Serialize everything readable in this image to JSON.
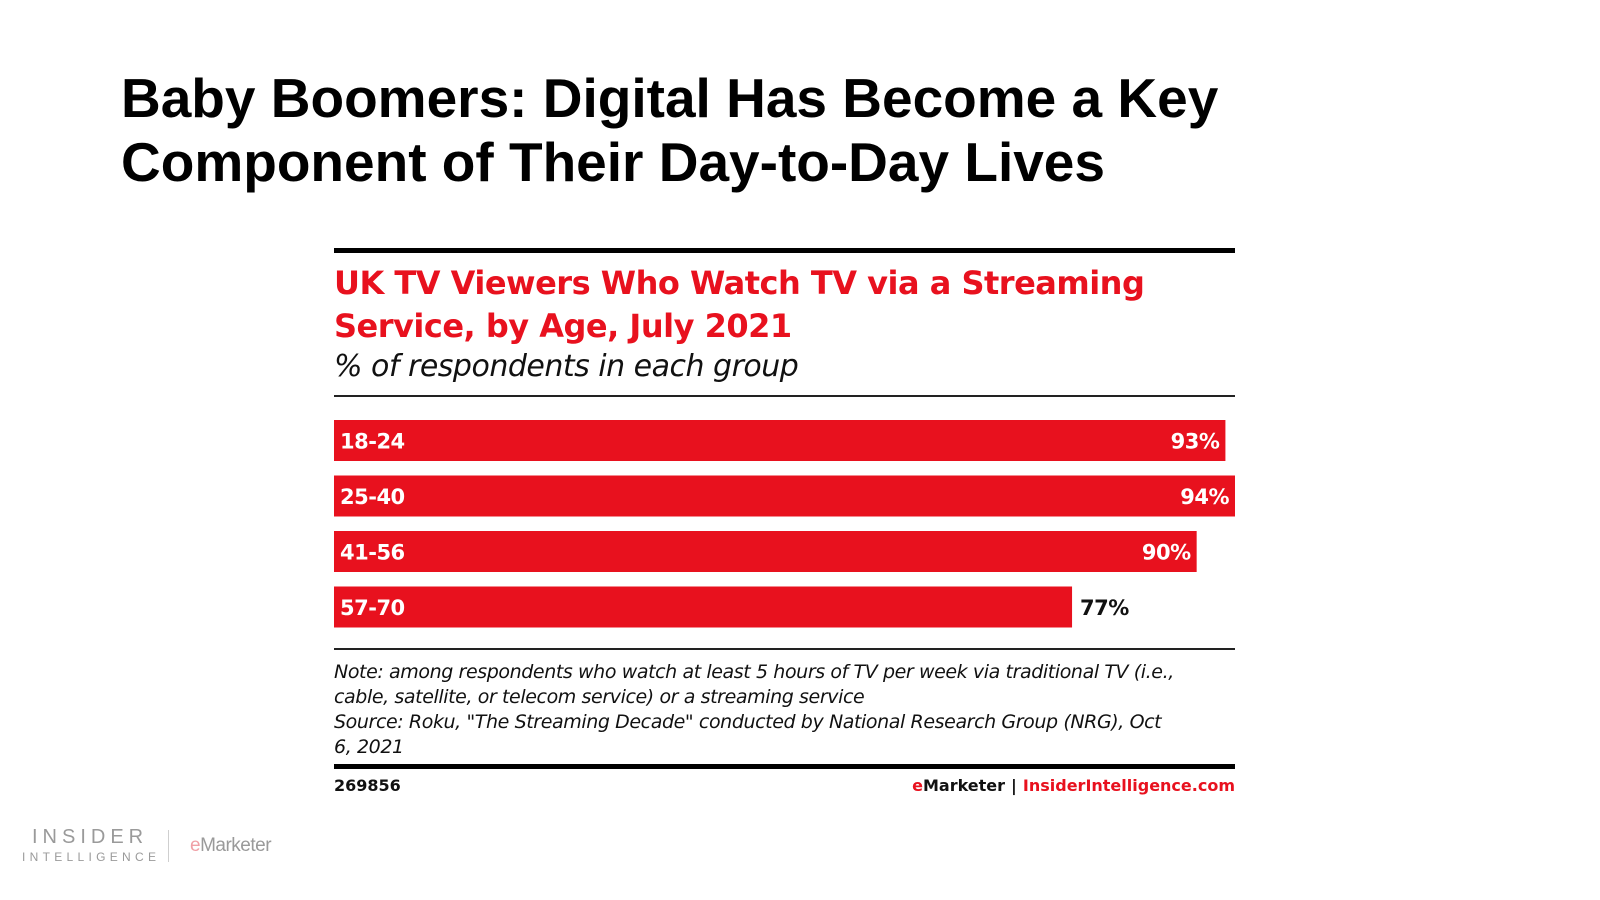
{
  "slide": {
    "title_line1": "Baby Boomers: Digital Has Become a Key",
    "title_line2": "Component of Their Day-to-Day Lives"
  },
  "colors": {
    "accent": "#e8111e",
    "bar": "#e8111e",
    "label_inside": "#ffffff",
    "label_outside": "#111111"
  },
  "chart_data": {
    "type": "bar",
    "orientation": "horizontal",
    "title_line1": "UK TV Viewers Who Watch TV via a Streaming",
    "title_line2": "Service, by Age, July 2021",
    "subtitle": "% of respondents in each group",
    "categories": [
      "18-24",
      "25-40",
      "41-56",
      "57-70"
    ],
    "values": [
      93,
      94,
      90,
      77
    ],
    "value_labels": [
      "93%",
      "94%",
      "90%",
      "77%"
    ],
    "unit": "%",
    "xlim": [
      0,
      94
    ],
    "grid": false,
    "legend": "none",
    "note_line1": "Note: among respondents who watch at least 5 hours of TV per week via traditional TV (i.e.,",
    "note_line2": "cable, satellite, or telecom service) or a streaming service",
    "source_line1": "Source: Roku, \"The Streaming Decade\" conducted by National Research Group (NRG), Oct",
    "source_line2": "6, 2021",
    "chart_id": "269856",
    "credit_brand_e": "e",
    "credit_brand_rest": "Marketer",
    "credit_separator": "|",
    "credit_site": "InsiderIntelligence.com"
  },
  "footer": {
    "logo_line1": "INSIDER",
    "logo_line2": "INTELLIGENCE",
    "logo2_e": "e",
    "logo2_rest": "Marketer"
  }
}
